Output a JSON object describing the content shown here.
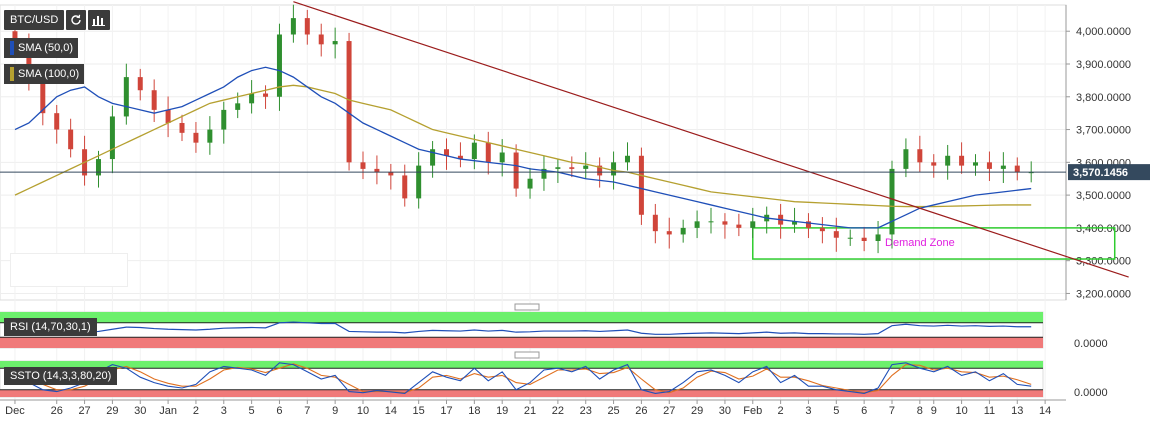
{
  "toolbar": {
    "symbol": "BTC/USD",
    "refresh_icon": "refresh-icon",
    "chart_icon": "bar-chart-icon"
  },
  "indicators": [
    {
      "label": "SMA (50,0)",
      "color": "#1f4fb8"
    },
    {
      "label": "SMA (100,0)",
      "color": "#b5a030"
    }
  ],
  "panes": {
    "rsi_label": "RSI (14,70,30,1)",
    "ssto_label": "SSTO (14,3,3,80,20)",
    "rsi_zero": "0.0000",
    "ssto_zero": "0.0000"
  },
  "annotation": {
    "demand_zone": "Demand Zone"
  },
  "colors": {
    "up": "#2f8f2f",
    "down": "#d0453a",
    "trend": "#9b1c1c",
    "zone": "#2ecc2e",
    "price_tag": "#34495e",
    "annotation": "#e020e0"
  },
  "chart_data": {
    "type": "candlestick",
    "title": "BTC/USD",
    "xlabel": "",
    "ylabel": "",
    "ylim": [
      3180,
      4080
    ],
    "y_ticks": [
      "4,000.0000",
      "3,900.0000",
      "3,800.0000",
      "3,700.0000",
      "3,600.0000",
      "3,500.0000",
      "3,400.0000",
      "3,300.0000",
      "3,200.0000"
    ],
    "y_tick_values": [
      4000,
      3900,
      3800,
      3700,
      3600,
      3500,
      3400,
      3300,
      3200
    ],
    "x_ticks": [
      "Dec",
      "26",
      "27",
      "29",
      "30",
      "Jan",
      "2",
      "3",
      "5",
      "6",
      "7",
      "9",
      "10",
      "14",
      "15",
      "17",
      "18",
      "19",
      "21",
      "22",
      "23",
      "25",
      "26",
      "27",
      "29",
      "30",
      "Feb",
      "2",
      "3",
      "5",
      "6",
      "7",
      "8",
      "9",
      "10",
      "11",
      "13",
      "14"
    ],
    "x_tick_index": [
      0,
      3,
      5,
      7,
      9,
      11,
      13,
      15,
      17,
      19,
      21,
      23,
      25,
      27,
      29,
      31,
      33,
      35,
      37,
      39,
      41,
      43,
      45,
      47,
      49,
      51,
      53,
      55,
      57,
      59,
      61,
      63,
      65,
      66,
      68,
      70,
      72,
      74
    ],
    "last_price": "3,570.1456",
    "last_price_value": 3570.1456,
    "closes": [
      3960,
      3850,
      3750,
      3700,
      3640,
      3560,
      3610,
      3740,
      3860,
      3820,
      3760,
      3720,
      3690,
      3660,
      3700,
      3760,
      3780,
      3810,
      3800,
      3990,
      4040,
      3990,
      3960,
      3970,
      3600,
      3580,
      3570,
      3560,
      3490,
      3590,
      3640,
      3620,
      3610,
      3660,
      3600,
      3630,
      3520,
      3550,
      3580,
      3585,
      3580,
      3590,
      3560,
      3600,
      3620,
      3440,
      3390,
      3380,
      3400,
      3420,
      3420,
      3410,
      3400,
      3420,
      3440,
      3410,
      3420,
      3400,
      3390,
      3370,
      3370,
      3360,
      3380,
      3580,
      3640,
      3600,
      3590,
      3620,
      3590,
      3600,
      3580,
      3590,
      3570,
      3570
    ],
    "sma50": [
      3700,
      3720,
      3760,
      3800,
      3820,
      3830,
      3800,
      3780,
      3770,
      3760,
      3750,
      3760,
      3770,
      3790,
      3810,
      3830,
      3860,
      3880,
      3890,
      3880,
      3860,
      3830,
      3800,
      3780,
      3750,
      3720,
      3700,
      3680,
      3660,
      3640,
      3630,
      3620,
      3610,
      3605,
      3600,
      3595,
      3590,
      3580,
      3575,
      3570,
      3560,
      3550,
      3545,
      3540,
      3530,
      3520,
      3510,
      3500,
      3490,
      3480,
      3470,
      3460,
      3450,
      3440,
      3430,
      3425,
      3420,
      3415,
      3410,
      3405,
      3400,
      3400,
      3400,
      3420,
      3440,
      3460,
      3470,
      3480,
      3490,
      3500,
      3505,
      3510,
      3515,
      3520
    ],
    "sma100": [
      3500,
      3520,
      3540,
      3560,
      3580,
      3600,
      3620,
      3640,
      3660,
      3680,
      3700,
      3720,
      3740,
      3760,
      3780,
      3790,
      3800,
      3810,
      3820,
      3830,
      3835,
      3830,
      3820,
      3810,
      3790,
      3780,
      3770,
      3760,
      3740,
      3720,
      3700,
      3690,
      3680,
      3670,
      3660,
      3650,
      3640,
      3630,
      3620,
      3610,
      3600,
      3595,
      3585,
      3575,
      3570,
      3560,
      3550,
      3540,
      3530,
      3520,
      3510,
      3505,
      3500,
      3495,
      3490,
      3485,
      3480,
      3478,
      3476,
      3474,
      3472,
      3470,
      3468,
      3466,
      3465,
      3465,
      3465,
      3466,
      3467,
      3468,
      3469,
      3470,
      3470,
      3470
    ],
    "trendline": [
      [
        20,
        4090
      ],
      [
        80,
        3250
      ]
    ],
    "demand_zone": {
      "y_range": [
        3305,
        3400
      ],
      "x_range": [
        53.0,
        79.0
      ]
    },
    "rsi": {
      "overbought": 70,
      "oversold": 30,
      "values": [
        62,
        58,
        50,
        47,
        45,
        44,
        46,
        52,
        58,
        57,
        54,
        52,
        51,
        50,
        52,
        55,
        56,
        57,
        56,
        70,
        72,
        70,
        68,
        68,
        46,
        45,
        44,
        44,
        42,
        46,
        49,
        48,
        47,
        50,
        47,
        49,
        44,
        45,
        47,
        47,
        47,
        48,
        46,
        48,
        50,
        41,
        38,
        38,
        40,
        41,
        42,
        41,
        40,
        42,
        44,
        41,
        42,
        40,
        40,
        39,
        39,
        38,
        40,
        62,
        66,
        62,
        61,
        63,
        61,
        62,
        60,
        61,
        59,
        59
      ]
    },
    "ssto": {
      "overbought": 80,
      "oversold": 20,
      "k": [
        80,
        40,
        20,
        15,
        25,
        40,
        70,
        90,
        80,
        55,
        40,
        30,
        25,
        35,
        70,
        85,
        80,
        75,
        60,
        95,
        90,
        70,
        50,
        60,
        15,
        12,
        18,
        14,
        10,
        40,
        70,
        55,
        45,
        80,
        45,
        70,
        20,
        40,
        75,
        80,
        70,
        85,
        50,
        75,
        90,
        20,
        10,
        15,
        40,
        70,
        75,
        60,
        40,
        70,
        85,
        40,
        60,
        30,
        30,
        20,
        15,
        10,
        25,
        90,
        95,
        80,
        70,
        85,
        60,
        70,
        45,
        65,
        35,
        30
      ],
      "d": [
        70,
        55,
        35,
        20,
        20,
        30,
        50,
        75,
        85,
        70,
        50,
        38,
        30,
        30,
        50,
        75,
        82,
        78,
        68,
        80,
        92,
        80,
        60,
        55,
        35,
        15,
        15,
        15,
        12,
        25,
        55,
        60,
        50,
        65,
        55,
        60,
        40,
        35,
        55,
        75,
        75,
        78,
        65,
        68,
        82,
        50,
        20,
        12,
        25,
        55,
        72,
        68,
        50,
        58,
        78,
        55,
        55,
        45,
        32,
        25,
        18,
        12,
        18,
        60,
        90,
        88,
        75,
        80,
        70,
        68,
        55,
        58,
        48,
        35
      ]
    }
  }
}
